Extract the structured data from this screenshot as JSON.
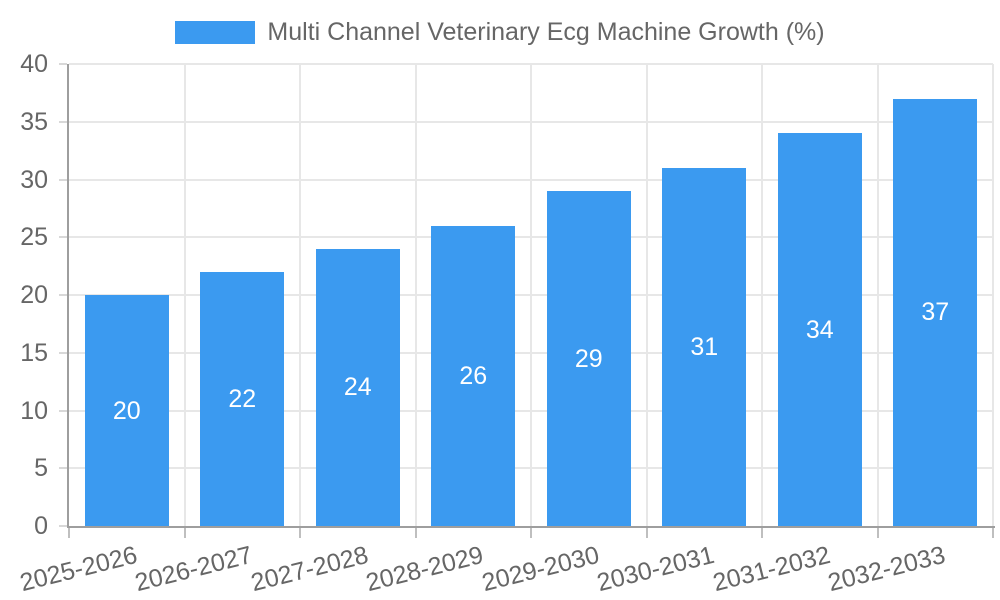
{
  "legend": {
    "label": "Multi Channel Veterinary Ecg Machine Growth (%)"
  },
  "chart_data": {
    "type": "bar",
    "title": "Multi Channel Veterinary Ecg Machine Growth (%)",
    "categories": [
      "2025-2026",
      "2026-2027",
      "2027-2028",
      "2028-2029",
      "2029-2030",
      "2030-2031",
      "2031-2032",
      "2032-2033"
    ],
    "values": [
      20,
      22,
      24,
      26,
      29,
      31,
      34,
      37
    ],
    "xlabel": "",
    "ylabel": "",
    "ylim": [
      0,
      40
    ],
    "yticks": [
      0,
      5,
      10,
      15,
      20,
      25,
      30,
      35,
      40
    ],
    "grid": true,
    "legend_position": "top",
    "bar_color": "#3B9AF0",
    "value_label_color": "#FFFFFF",
    "axis_text_color": "#666666",
    "gridline_color": "#e7e7e7",
    "axis_line_color": "#9e9e9e"
  }
}
